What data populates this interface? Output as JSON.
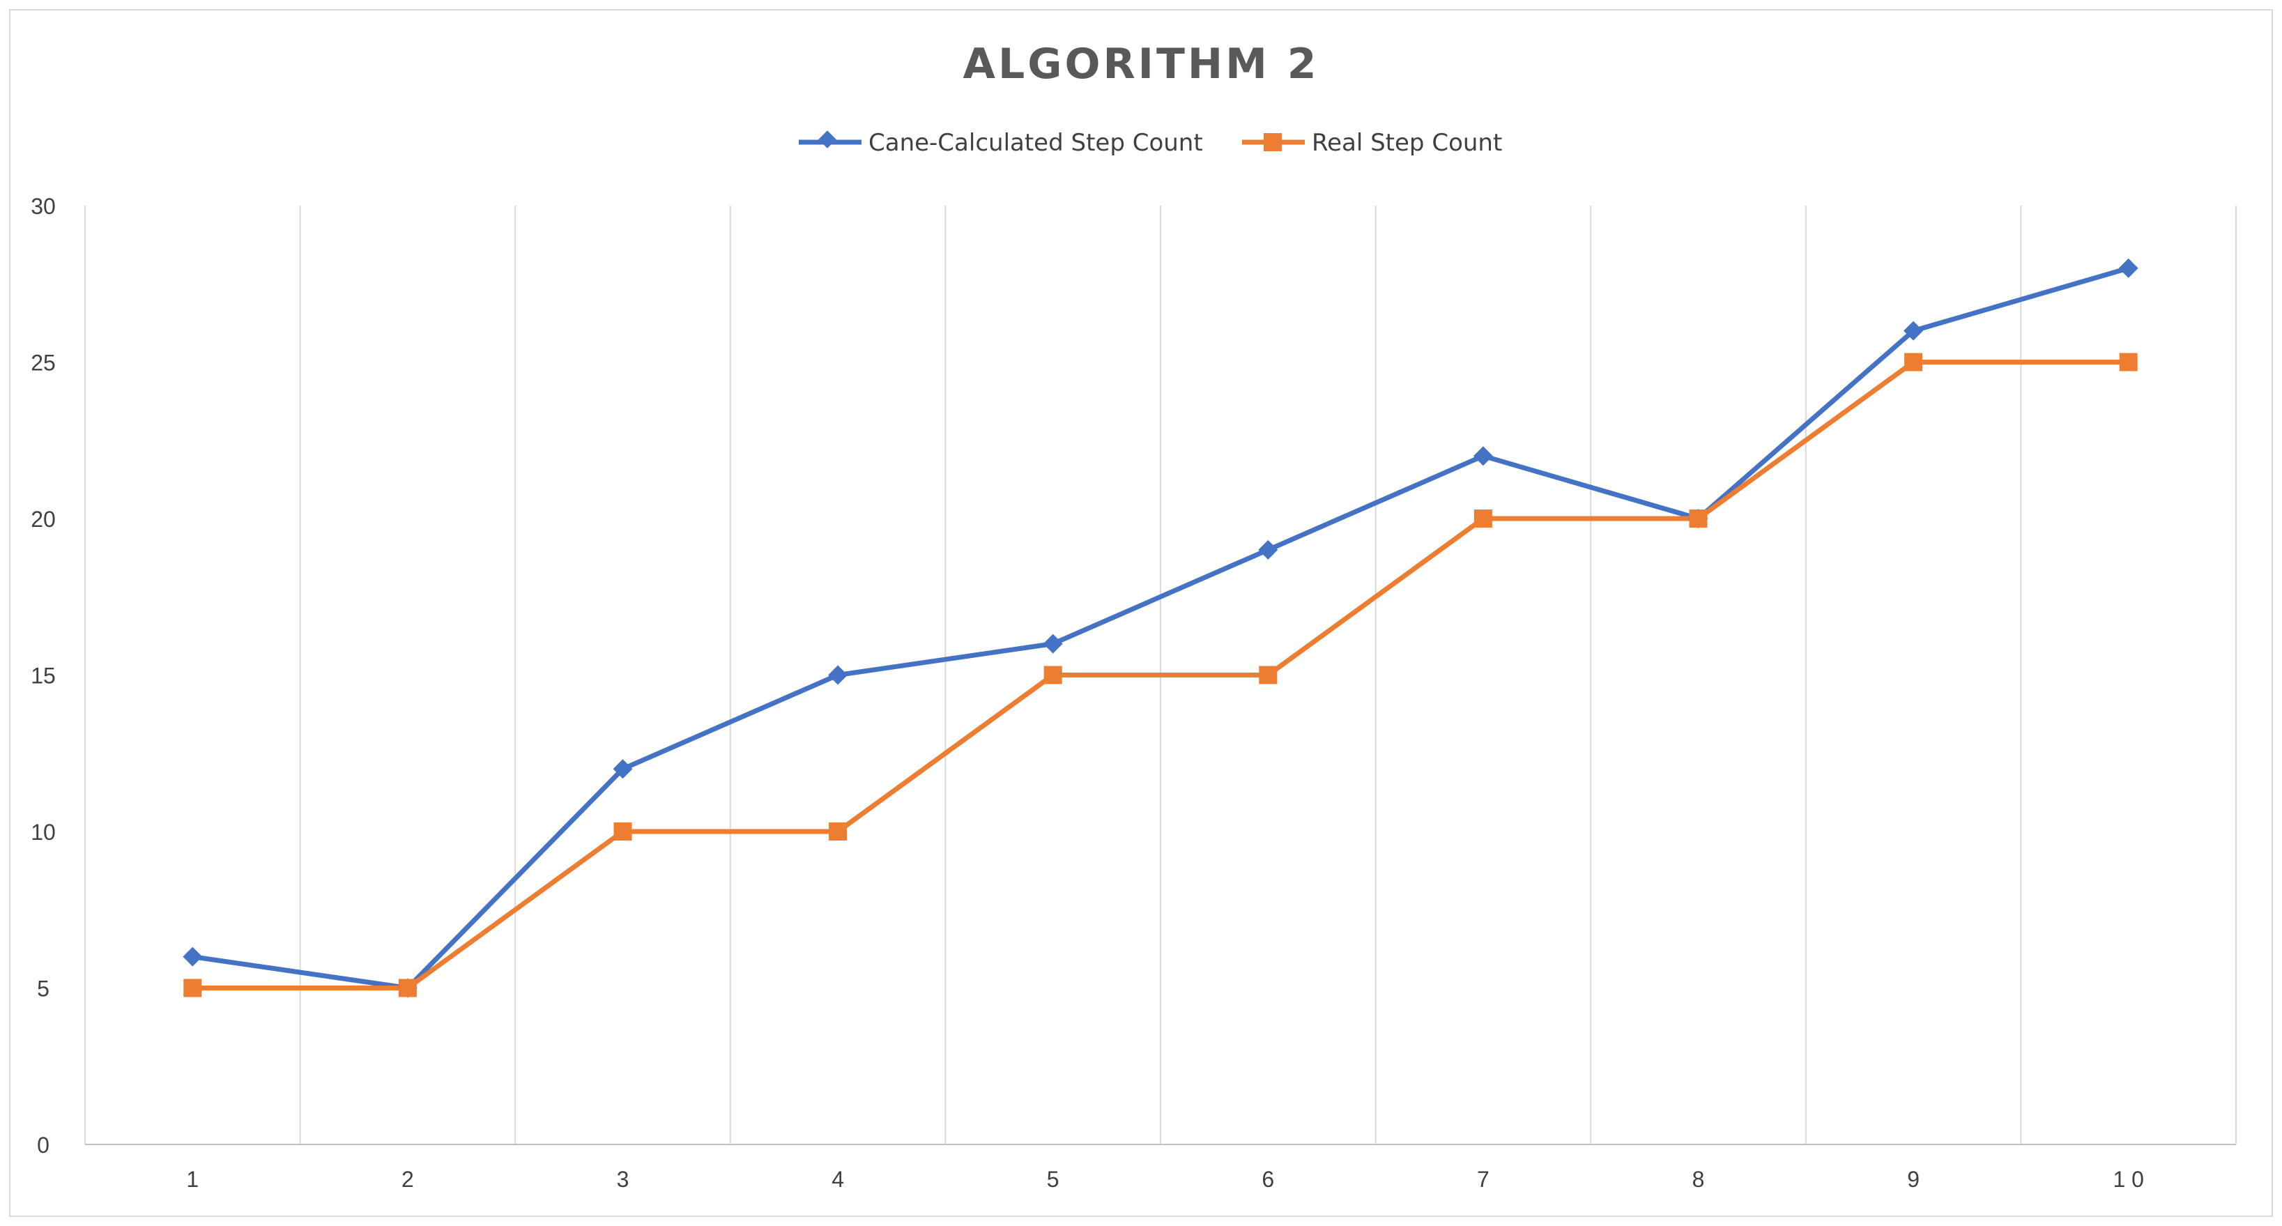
{
  "chart_data": {
    "type": "line",
    "title": "ALGORITHM 2",
    "xlabel": "",
    "ylabel": "",
    "x": [
      "1",
      "2",
      "3",
      "4",
      "5",
      "6",
      "7",
      "8",
      "9",
      "10"
    ],
    "x_tick_labels": [
      "1",
      "2",
      "3",
      "4",
      "5",
      "6",
      "7",
      "8",
      "9",
      "1 0"
    ],
    "ylim": [
      0,
      30
    ],
    "y_ticks": [
      0,
      5,
      10,
      15,
      20,
      25,
      30
    ],
    "grid": "vertical",
    "legend_position": "top-center",
    "series": [
      {
        "name": "Cane-Calculated Step Count",
        "color": "#4472C4",
        "marker": "diamond",
        "values": [
          6,
          5,
          12,
          15,
          16,
          19,
          22,
          20,
          26,
          28
        ]
      },
      {
        "name": "Real Step Count",
        "color": "#ED7D31",
        "marker": "square",
        "values": [
          5,
          5,
          10,
          10,
          15,
          15,
          20,
          20,
          25,
          25
        ]
      }
    ]
  }
}
